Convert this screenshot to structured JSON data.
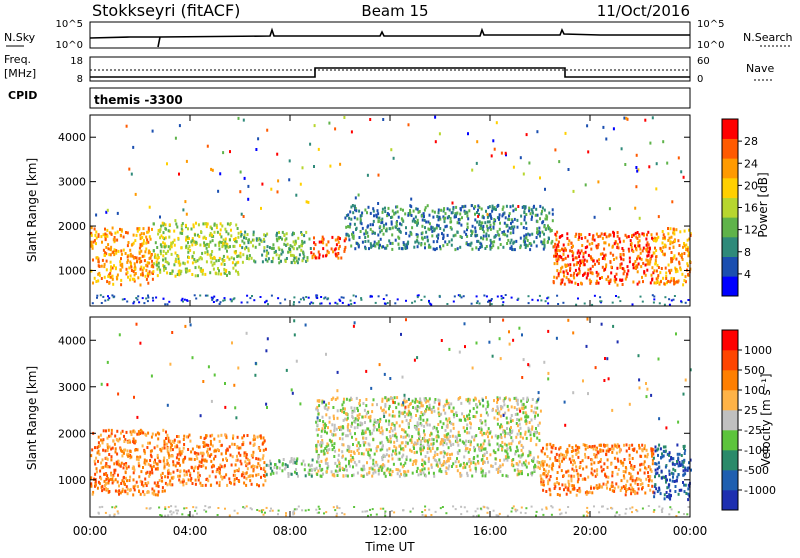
{
  "header": {
    "title": "Stokkseyri (fitACF)",
    "beam": "Beam 15",
    "date": "11/Oct/2016"
  },
  "summary_panels": {
    "nsky_label": "N.Sky",
    "nsearch_label": "N.Search",
    "nsky_ticks": [
      "10^5",
      "10^0"
    ],
    "nsearch_ticks": [
      "10^5",
      "10^0"
    ],
    "freq_label_1": "Freq.",
    "freq_label_2": "[MHz]",
    "freq_ticks": [
      "18",
      "8"
    ],
    "nave_label": "Nave",
    "nave_ticks": [
      "60",
      "0"
    ],
    "cpid_label": "CPID",
    "cpid_value": "themis -3300"
  },
  "colors": {
    "power_scale": [
      "#0000ff",
      "#1b4fb0",
      "#2f8a7a",
      "#5fb34a",
      "#b7d62f",
      "#ffd000",
      "#ff9a00",
      "#ff5a00",
      "#ff0000"
    ],
    "velocity_scale": [
      "#1e2fb0",
      "#1f5fb0",
      "#2a8a6a",
      "#5cc43c",
      "#c0c0c0",
      "#ffb347",
      "#ff7f00",
      "#ff4500",
      "#ff0000"
    ]
  },
  "chart_data": [
    {
      "type": "heatmap",
      "name": "power",
      "ylabel": "Slant Range [km]",
      "yticks": [
        "1000",
        "2000",
        "3000",
        "4000"
      ],
      "ylim": [
        200,
        4500
      ],
      "xlim": [
        "00:00",
        "24:00"
      ],
      "colorbar_label": "Power [dB]",
      "colorbar_ticks": [
        "28",
        "24",
        "20",
        "16",
        "12",
        "8",
        "4"
      ],
      "regions": [
        {
          "t": [
            0.0,
            2.5
          ],
          "r": [
            700,
            2000
          ],
          "level": 6
        },
        {
          "t": [
            2.5,
            6.0
          ],
          "r": [
            900,
            2100
          ],
          "level": 4
        },
        {
          "t": [
            6.0,
            8.8
          ],
          "r": [
            1200,
            1900
          ],
          "level": 3
        },
        {
          "t": [
            8.8,
            10.2
          ],
          "r": [
            1300,
            1800
          ],
          "level": 7
        },
        {
          "t": [
            10.2,
            18.5
          ],
          "r": [
            1500,
            2500
          ],
          "level": 2
        },
        {
          "t": [
            18.5,
            22.5
          ],
          "r": [
            700,
            1900
          ],
          "level": 7
        },
        {
          "t": [
            22.5,
            24.0
          ],
          "r": [
            700,
            2000
          ],
          "level": 6
        }
      ]
    },
    {
      "type": "heatmap",
      "name": "velocity",
      "ylabel": "Slant Range [km]",
      "yticks": [
        "1000",
        "2000",
        "3000",
        "4000"
      ],
      "ylim": [
        200,
        4500
      ],
      "xlim": [
        "00:00",
        "24:00"
      ],
      "xlabel": "Time UT",
      "xticks": [
        "00:00",
        "04:00",
        "08:00",
        "12:00",
        "16:00",
        "20:00",
        "00:00"
      ],
      "colorbar_label": "Velocity [m s⁻¹]",
      "colorbar_ticks": [
        "1000",
        "500",
        "100",
        "25",
        "-25",
        "-100",
        "-500",
        "-1000"
      ],
      "regions": [
        {
          "t": [
            0.0,
            3.0
          ],
          "r": [
            700,
            2100
          ],
          "level": 6
        },
        {
          "t": [
            3.0,
            7.0
          ],
          "r": [
            900,
            2000
          ],
          "level": 6
        },
        {
          "t": [
            7.0,
            9.0
          ],
          "r": [
            1100,
            1500
          ],
          "level": 3
        },
        {
          "t": [
            9.0,
            18.0
          ],
          "r": [
            1100,
            2800
          ],
          "level": 4
        },
        {
          "t": [
            18.0,
            22.5
          ],
          "r": [
            700,
            1800
          ],
          "level": 6
        },
        {
          "t": [
            22.5,
            24.0
          ],
          "r": [
            600,
            1800
          ],
          "level": 1
        }
      ]
    }
  ]
}
